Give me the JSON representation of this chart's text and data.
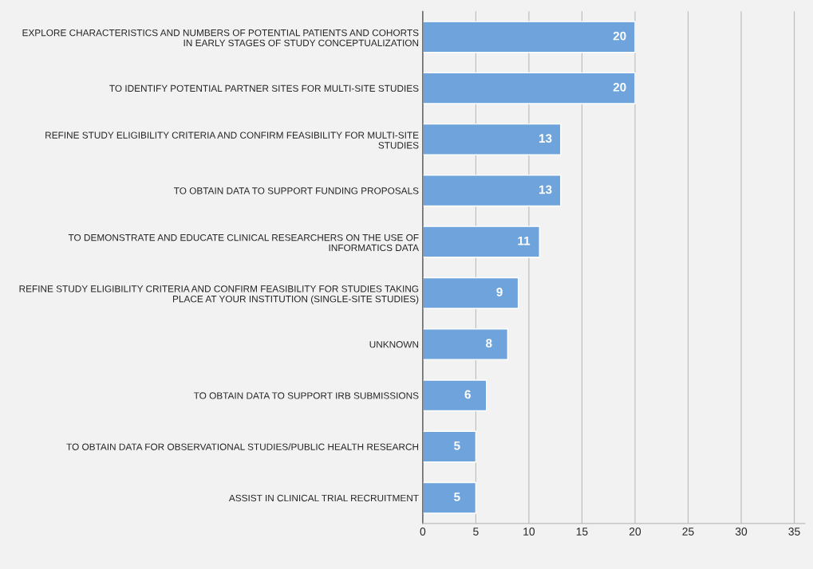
{
  "chart_data": {
    "type": "bar",
    "orientation": "horizontal",
    "categories": [
      "EXPLORE CHARACTERISTICS AND NUMBERS OF POTENTIAL PATIENTS AND COHORTS\nIN EARLY STAGES OF STUDY CONCEPTUALIZATION",
      "TO IDENTIFY POTENTIAL PARTNER SITES FOR MULTI-SITE STUDIES",
      "REFINE STUDY ELIGIBILITY CRITERIA AND CONFIRM FEASIBILITY FOR MULTI-SITE\nSTUDIES",
      "TO OBTAIN DATA TO SUPPORT FUNDING PROPOSALS",
      "TO DEMONSTRATE AND EDUCATE CLINICAL RESEARCHERS ON THE USE OF\nINFORMATICS DATA",
      "REFINE STUDY ELIGIBILITY CRITERIA AND CONFIRM FEASIBILITY FOR STUDIES TAKING\nPLACE AT YOUR INSTITUTION (SINGLE-SITE STUDIES)",
      "UNKNOWN",
      "TO OBTAIN DATA TO SUPPORT IRB SUBMISSIONS",
      "TO OBTAIN DATA FOR OBSERVATIONAL STUDIES/PUBLIC HEALTH RESEARCH",
      "ASSIST IN CLINICAL TRIAL RECRUITMENT"
    ],
    "values": [
      20,
      20,
      13,
      13,
      11,
      9,
      8,
      6,
      5,
      5
    ],
    "color": "#6fa3db",
    "xlim": [
      0,
      36
    ],
    "xticks": [
      0,
      5,
      10,
      15,
      20,
      25,
      30,
      35
    ],
    "grid": "x",
    "data_labels": true
  }
}
